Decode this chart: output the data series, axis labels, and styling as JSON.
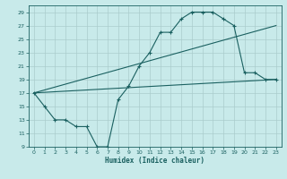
{
  "xlabel": "Humidex (Indice chaleur)",
  "bg_color": "#c8eaea",
  "grid_color": "#aacccc",
  "line_color": "#1a6060",
  "xlim": [
    0,
    23
  ],
  "ylim": [
    9,
    30
  ],
  "xticks": [
    0,
    1,
    2,
    3,
    4,
    5,
    6,
    7,
    8,
    9,
    10,
    11,
    12,
    13,
    14,
    15,
    16,
    17,
    18,
    19,
    20,
    21,
    22,
    23
  ],
  "yticks": [
    9,
    11,
    13,
    15,
    17,
    19,
    21,
    23,
    25,
    27,
    29
  ],
  "curve_x": [
    0,
    1,
    2,
    3,
    4,
    5,
    6,
    7,
    8,
    9,
    10,
    11,
    12,
    13,
    14,
    15,
    16,
    17,
    18,
    19,
    20,
    21,
    22,
    23
  ],
  "curve_y": [
    17,
    15,
    13,
    13,
    12,
    12,
    9,
    9,
    16,
    18,
    21,
    23,
    26,
    26,
    28,
    29,
    29,
    29,
    28,
    27,
    20,
    20,
    19,
    19
  ],
  "line1_x": [
    0,
    23
  ],
  "line1_y": [
    17,
    19
  ],
  "line2_x": [
    0,
    23
  ],
  "line2_y": [
    17,
    27
  ]
}
